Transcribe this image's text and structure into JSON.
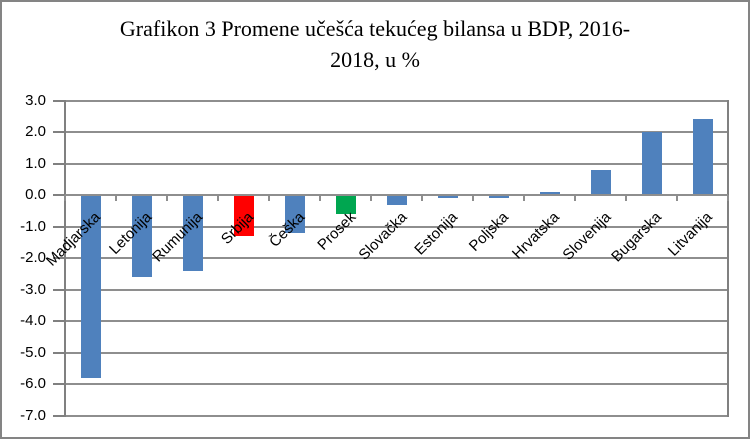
{
  "figure": {
    "title_line1": "Grafikon 3 Promene učešća tekućeg bilansa u BDP, 2016-",
    "title_line2": "2018, u %"
  },
  "colors": {
    "bar_default": "#4F81BD",
    "bar_srbija": "#FF0000",
    "bar_prosek": "#00A650",
    "gridline": "#8E8E8E",
    "axis": "#808080",
    "outer_border": "#848484",
    "text": "#000000",
    "background": "#FFFFFF"
  },
  "chart_data": {
    "type": "bar",
    "title": "Grafikon 3 Promene učešća tekućeg bilansa u BDP, 2016-2018, u %",
    "categories": [
      "Madjarska",
      "Letonija",
      "Rumunija",
      "Srbija",
      "Češka",
      "Prosek",
      "Slovačka",
      "Estonija",
      "Poljska",
      "Hrvatska",
      "Slovenija",
      "Bugarska",
      "Litvanija"
    ],
    "values": [
      -5.8,
      -2.6,
      -2.4,
      -1.3,
      -1.2,
      -0.6,
      -0.3,
      -0.1,
      -0.1,
      0.1,
      0.8,
      2.0,
      2.4
    ],
    "bar_colors": [
      "#4F81BD",
      "#4F81BD",
      "#4F81BD",
      "#FF0000",
      "#4F81BD",
      "#00A650",
      "#4F81BD",
      "#4F81BD",
      "#4F81BD",
      "#4F81BD",
      "#4F81BD",
      "#4F81BD",
      "#4F81BD"
    ],
    "xlabel": "",
    "ylabel": "",
    "ylim": [
      -7.0,
      3.0
    ],
    "ytick_step": 1.0,
    "ytick_labels": [
      "3.0",
      "2.0",
      "1.0",
      "0.0",
      "-1.0",
      "-2.0",
      "-3.0",
      "-4.0",
      "-5.0",
      "-6.0",
      "-7.0"
    ],
    "grid": true,
    "legend": false,
    "category_label_rotation_deg": 45
  }
}
